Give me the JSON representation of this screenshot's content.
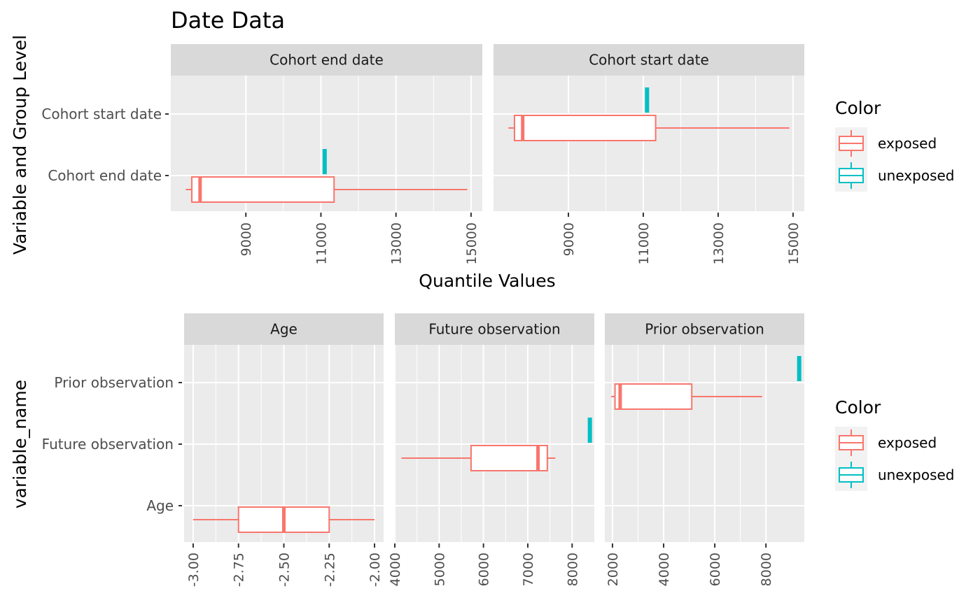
{
  "chart_data": [
    {
      "type": "boxplot",
      "title": "Date Data",
      "xlabel": "Quantile Values",
      "ylabel": "Variable and Group Level",
      "y_categories": [
        "Cohort end date",
        "Cohort start date"
      ],
      "x_ticks": [
        9000,
        11000,
        13000,
        15000
      ],
      "series_colors": {
        "exposed": "#F8766D",
        "unexposed": "#00BFC4"
      },
      "legend": {
        "title": "Color",
        "entries": [
          "exposed",
          "unexposed"
        ],
        "position": "right"
      },
      "facets": [
        {
          "name": "Cohort end date",
          "xlim": [
            7000,
            15300
          ],
          "boxes": [
            {
              "variable": "Cohort end date",
              "group": "exposed",
              "min": 7400,
              "q1": 7560,
              "median": 7780,
              "q3": 11350,
              "max": 14900
            },
            {
              "variable": "Cohort end date",
              "group": "unexposed",
              "min": 11100,
              "q1": 11100,
              "median": 11100,
              "q3": 11100,
              "max": 11100
            }
          ]
        },
        {
          "name": "Cohort start date",
          "xlim": [
            7000,
            15300
          ],
          "boxes": [
            {
              "variable": "Cohort start date",
              "group": "exposed",
              "min": 7400,
              "q1": 7560,
              "median": 7780,
              "q3": 11330,
              "max": 14900
            },
            {
              "variable": "Cohort start date",
              "group": "unexposed",
              "min": 11100,
              "q1": 11100,
              "median": 11100,
              "q3": 11100,
              "max": 11100
            }
          ]
        }
      ]
    },
    {
      "type": "boxplot",
      "title": "",
      "xlabel": "",
      "ylabel": "variable_name",
      "y_categories": [
        "Age",
        "Future observation",
        "Prior observation"
      ],
      "series_colors": {
        "exposed": "#F8766D",
        "unexposed": "#00BFC4"
      },
      "legend": {
        "title": "Color",
        "entries": [
          "exposed",
          "unexposed"
        ],
        "position": "right"
      },
      "facets": [
        {
          "name": "Age",
          "xlim": [
            -3.05,
            -1.95
          ],
          "x_ticks": [
            -3,
            -2.75,
            -2.5,
            -2.25,
            -2
          ],
          "x_tick_labels": [
            "-3.00",
            "-2.75",
            "-2.50",
            "-2.25",
            "-2.00"
          ],
          "boxes": [
            {
              "variable": "Age",
              "group": "exposed",
              "min": -3.0,
              "q1": -2.75,
              "median": -2.5,
              "q3": -2.25,
              "max": -2.0
            }
          ]
        },
        {
          "name": "Future observation",
          "xlim": [
            4000,
            8500
          ],
          "x_ticks": [
            4000,
            5000,
            6000,
            7000,
            8000
          ],
          "x_tick_labels": [
            "4000",
            "5000",
            "6000",
            "7000",
            "8000"
          ],
          "boxes": [
            {
              "variable": "Future observation",
              "group": "exposed",
              "min": 4150,
              "q1": 5720,
              "median": 7230,
              "q3": 7440,
              "max": 7620
            },
            {
              "variable": "Future observation",
              "group": "unexposed",
              "min": 8400,
              "q1": 8400,
              "median": 8400,
              "q3": 8400,
              "max": 8400
            }
          ]
        },
        {
          "name": "Prior observation",
          "xlim": [
            1700,
            9500
          ],
          "x_ticks": [
            2000,
            4000,
            6000,
            8000
          ],
          "x_tick_labels": [
            "2000",
            "4000",
            "6000",
            "8000"
          ],
          "boxes": [
            {
              "variable": "Prior observation",
              "group": "exposed",
              "min": 1950,
              "q1": 2100,
              "median": 2300,
              "q3": 5100,
              "max": 7850
            },
            {
              "variable": "Prior observation",
              "group": "unexposed",
              "min": 9300,
              "q1": 9300,
              "median": 9300,
              "q3": 9300,
              "max": 9300
            }
          ]
        }
      ]
    }
  ]
}
